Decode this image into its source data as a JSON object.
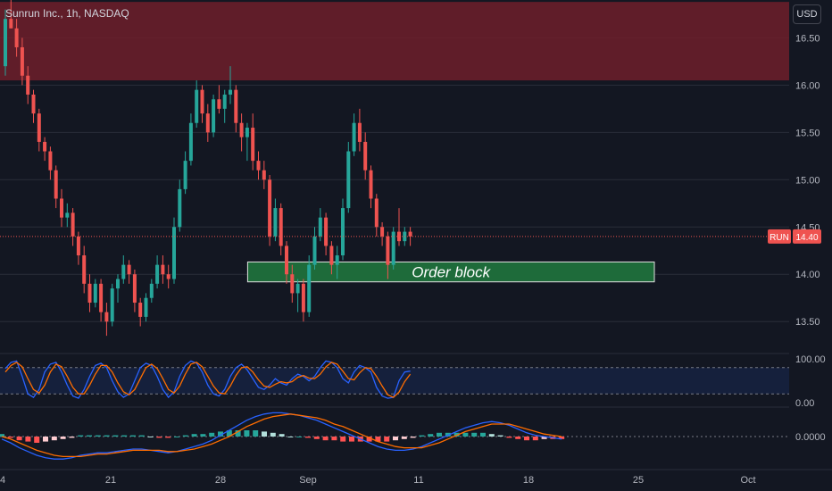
{
  "header": {
    "title": "Sunrun Inc., 1h, NASDAQ",
    "currency": "USD"
  },
  "colors": {
    "bg": "#131722",
    "up": "#26a69a",
    "down": "#ef5350",
    "grid": "#2a2e39",
    "supply": "#6e1f2a",
    "orderblock": "#1e6b3a",
    "stoch_k": "#2962ff",
    "stoch_d": "#ff6d00"
  },
  "chart_data": {
    "type": "candlestick",
    "price_axis": {
      "ylim": [
        13.2,
        16.9
      ],
      "ticks": [
        "16.50",
        "16.00",
        "15.50",
        "15.00",
        "14.50",
        "14.00",
        "13.50"
      ]
    },
    "x_ticks": [
      "4",
      "21",
      "28",
      "Sep",
      "11",
      "18",
      "25",
      "Oct"
    ],
    "last_price": {
      "label": "RUN",
      "value": "14.40"
    },
    "zones": [
      {
        "type": "supply",
        "from": 16.05,
        "to": 16.88
      },
      {
        "type": "order block",
        "from": 13.92,
        "to": 14.13,
        "label": "Order block"
      }
    ],
    "candles": [
      [
        16.2,
        16.8,
        16.1,
        16.7
      ],
      [
        16.7,
        16.9,
        16.6,
        16.6
      ],
      [
        16.6,
        16.7,
        16.3,
        16.4
      ],
      [
        16.4,
        16.5,
        16.0,
        16.1
      ],
      [
        16.1,
        16.2,
        15.8,
        15.9
      ],
      [
        15.9,
        15.95,
        15.6,
        15.7
      ],
      [
        15.7,
        15.75,
        15.3,
        15.4
      ],
      [
        15.4,
        15.45,
        15.2,
        15.3
      ],
      [
        15.3,
        15.35,
        15.0,
        15.1
      ],
      [
        15.1,
        15.15,
        14.7,
        14.8
      ],
      [
        14.8,
        14.9,
        14.5,
        14.6
      ],
      [
        14.6,
        14.75,
        14.5,
        14.65
      ],
      [
        14.65,
        14.7,
        14.3,
        14.4
      ],
      [
        14.4,
        14.45,
        14.1,
        14.2
      ],
      [
        14.2,
        14.3,
        13.8,
        13.9
      ],
      [
        13.9,
        14.0,
        13.6,
        13.7
      ],
      [
        13.7,
        13.95,
        13.65,
        13.9
      ],
      [
        13.9,
        13.95,
        13.5,
        13.6
      ],
      [
        13.6,
        13.7,
        13.35,
        13.5
      ],
      [
        13.5,
        13.9,
        13.45,
        13.85
      ],
      [
        13.85,
        14.0,
        13.7,
        13.95
      ],
      [
        13.95,
        14.2,
        13.9,
        14.1
      ],
      [
        14.1,
        14.15,
        13.9,
        14.0
      ],
      [
        14.0,
        14.05,
        13.6,
        13.7
      ],
      [
        13.7,
        13.75,
        13.45,
        13.55
      ],
      [
        13.55,
        13.8,
        13.5,
        13.75
      ],
      [
        13.75,
        13.95,
        13.7,
        13.9
      ],
      [
        13.9,
        14.2,
        13.85,
        14.1
      ],
      [
        14.1,
        14.2,
        13.9,
        14.0
      ],
      [
        14.0,
        14.1,
        13.85,
        13.95
      ],
      [
        13.95,
        14.6,
        13.9,
        14.5
      ],
      [
        14.5,
        15.0,
        14.45,
        14.9
      ],
      [
        14.9,
        15.3,
        14.85,
        15.2
      ],
      [
        15.2,
        15.7,
        15.15,
        15.6
      ],
      [
        15.6,
        16.05,
        15.55,
        15.95
      ],
      [
        15.95,
        16.0,
        15.6,
        15.7
      ],
      [
        15.7,
        15.8,
        15.4,
        15.5
      ],
      [
        15.5,
        15.9,
        15.45,
        15.85
      ],
      [
        15.85,
        16.0,
        15.7,
        15.75
      ],
      [
        15.75,
        15.95,
        15.6,
        15.9
      ],
      [
        15.9,
        16.2,
        15.8,
        15.95
      ],
      [
        15.95,
        16.0,
        15.5,
        15.6
      ],
      [
        15.6,
        15.7,
        15.3,
        15.45
      ],
      [
        15.45,
        15.6,
        15.2,
        15.55
      ],
      [
        15.55,
        15.7,
        15.1,
        15.2
      ],
      [
        15.2,
        15.3,
        15.0,
        15.1
      ],
      [
        15.1,
        15.2,
        14.9,
        15.0
      ],
      [
        15.0,
        15.05,
        14.3,
        14.4
      ],
      [
        14.4,
        14.8,
        14.35,
        14.7
      ],
      [
        14.7,
        14.75,
        14.2,
        14.3
      ],
      [
        14.3,
        14.35,
        13.9,
        14.0
      ],
      [
        14.0,
        14.1,
        13.7,
        13.8
      ],
      [
        13.8,
        13.95,
        13.6,
        13.9
      ],
      [
        13.9,
        13.95,
        13.5,
        13.6
      ],
      [
        13.6,
        14.2,
        13.55,
        14.1
      ],
      [
        14.1,
        14.5,
        14.05,
        14.4
      ],
      [
        14.4,
        14.7,
        14.35,
        14.6
      ],
      [
        14.6,
        14.65,
        14.2,
        14.3
      ],
      [
        14.3,
        14.35,
        14.0,
        14.1
      ],
      [
        14.1,
        14.3,
        13.95,
        14.2
      ],
      [
        14.2,
        14.8,
        14.15,
        14.7
      ],
      [
        14.7,
        15.4,
        14.65,
        15.3
      ],
      [
        15.3,
        15.7,
        15.25,
        15.6
      ],
      [
        15.6,
        15.75,
        15.3,
        15.4
      ],
      [
        15.4,
        15.5,
        15.0,
        15.1
      ],
      [
        15.1,
        15.15,
        14.7,
        14.8
      ],
      [
        14.8,
        14.85,
        14.4,
        14.5
      ],
      [
        14.5,
        14.55,
        14.3,
        14.4
      ],
      [
        14.4,
        14.45,
        13.95,
        14.1
      ],
      [
        14.1,
        14.5,
        14.05,
        14.45
      ],
      [
        14.45,
        14.7,
        14.3,
        14.35
      ],
      [
        14.35,
        14.5,
        14.3,
        14.45
      ],
      [
        14.45,
        14.5,
        14.3,
        14.4
      ]
    ],
    "stochastic": {
      "axis_ticks": [
        "100.00",
        "0.00"
      ],
      "band": [
        20,
        80
      ],
      "k": [
        78,
        92,
        95,
        60,
        20,
        12,
        30,
        70,
        88,
        92,
        70,
        40,
        15,
        10,
        30,
        60,
        85,
        90,
        80,
        50,
        25,
        12,
        20,
        50,
        80,
        90,
        85,
        60,
        30,
        12,
        25,
        60,
        85,
        95,
        90,
        70,
        40,
        20,
        15,
        30,
        60,
        80,
        88,
        75,
        55,
        35,
        30,
        40,
        55,
        45,
        40,
        55,
        65,
        60,
        50,
        60,
        80,
        95,
        92,
        80,
        55,
        45,
        70,
        85,
        80,
        70,
        35,
        15,
        10,
        12,
        50,
        70,
        72
      ],
      "d": [
        70,
        85,
        92,
        82,
        55,
        30,
        22,
        40,
        70,
        88,
        82,
        60,
        35,
        20,
        20,
        40,
        65,
        85,
        85,
        70,
        45,
        25,
        18,
        30,
        55,
        80,
        88,
        78,
        55,
        30,
        22,
        38,
        65,
        88,
        92,
        82,
        60,
        38,
        22,
        20,
        38,
        62,
        80,
        82,
        70,
        52,
        38,
        35,
        42,
        48,
        45,
        48,
        58,
        62,
        56,
        55,
        65,
        82,
        92,
        88,
        72,
        55,
        52,
        68,
        80,
        78,
        60,
        38,
        18,
        12,
        24,
        48,
        65
      ]
    },
    "macd": {
      "axis_ticks": [
        "0.0000"
      ],
      "macd": [
        -0.02,
        -0.05,
        -0.09,
        -0.12,
        -0.15,
        -0.17,
        -0.18,
        -0.18,
        -0.17,
        -0.15,
        -0.14,
        -0.13,
        -0.13,
        -0.12,
        -0.11,
        -0.1,
        -0.1,
        -0.11,
        -0.12,
        -0.13,
        -0.12,
        -0.1,
        -0.08,
        -0.06,
        -0.03,
        0.01,
        0.05,
        0.09,
        0.13,
        0.16,
        0.18,
        0.19,
        0.19,
        0.18,
        0.17,
        0.15,
        0.13,
        0.1,
        0.07,
        0.04,
        0.01,
        -0.02,
        -0.05,
        -0.08,
        -0.1,
        -0.11,
        -0.11,
        -0.1,
        -0.08,
        -0.05,
        -0.02,
        0.01,
        0.04,
        0.07,
        0.09,
        0.11,
        0.12,
        0.11,
        0.09,
        0.06,
        0.03,
        0.01,
        0.0,
        -0.01,
        -0.02
      ],
      "signal": [
        0.0,
        -0.02,
        -0.05,
        -0.08,
        -0.11,
        -0.13,
        -0.15,
        -0.16,
        -0.16,
        -0.16,
        -0.15,
        -0.14,
        -0.14,
        -0.13,
        -0.12,
        -0.11,
        -0.11,
        -0.11,
        -0.11,
        -0.12,
        -0.12,
        -0.11,
        -0.1,
        -0.08,
        -0.06,
        -0.03,
        0.0,
        0.04,
        0.08,
        0.11,
        0.14,
        0.16,
        0.17,
        0.18,
        0.17,
        0.16,
        0.15,
        0.13,
        0.1,
        0.08,
        0.05,
        0.02,
        -0.01,
        -0.04,
        -0.06,
        -0.08,
        -0.09,
        -0.09,
        -0.09,
        -0.07,
        -0.05,
        -0.02,
        0.01,
        0.04,
        0.06,
        0.08,
        0.1,
        0.1,
        0.1,
        0.08,
        0.06,
        0.04,
        0.02,
        0.01,
        0.0
      ],
      "histogram": [
        0.02,
        -0.01,
        -0.03,
        -0.04,
        -0.05,
        -0.04,
        -0.03,
        -0.02,
        -0.01,
        0.01,
        0.01,
        0.01,
        0.01,
        0.01,
        0.01,
        0.01,
        0.01,
        0.0,
        -0.01,
        -0.01,
        0.0,
        0.01,
        0.02,
        0.02,
        0.03,
        0.04,
        0.05,
        0.05,
        0.05,
        0.05,
        0.04,
        0.03,
        0.02,
        0.0,
        0.0,
        -0.01,
        -0.02,
        -0.03,
        -0.03,
        -0.04,
        -0.04,
        -0.04,
        -0.04,
        -0.04,
        -0.04,
        -0.03,
        -0.02,
        -0.01,
        0.01,
        0.02,
        0.03,
        0.03,
        0.03,
        0.03,
        0.03,
        0.03,
        0.02,
        0.01,
        -0.01,
        -0.02,
        -0.03,
        -0.03,
        -0.02,
        -0.02,
        -0.02
      ]
    }
  }
}
